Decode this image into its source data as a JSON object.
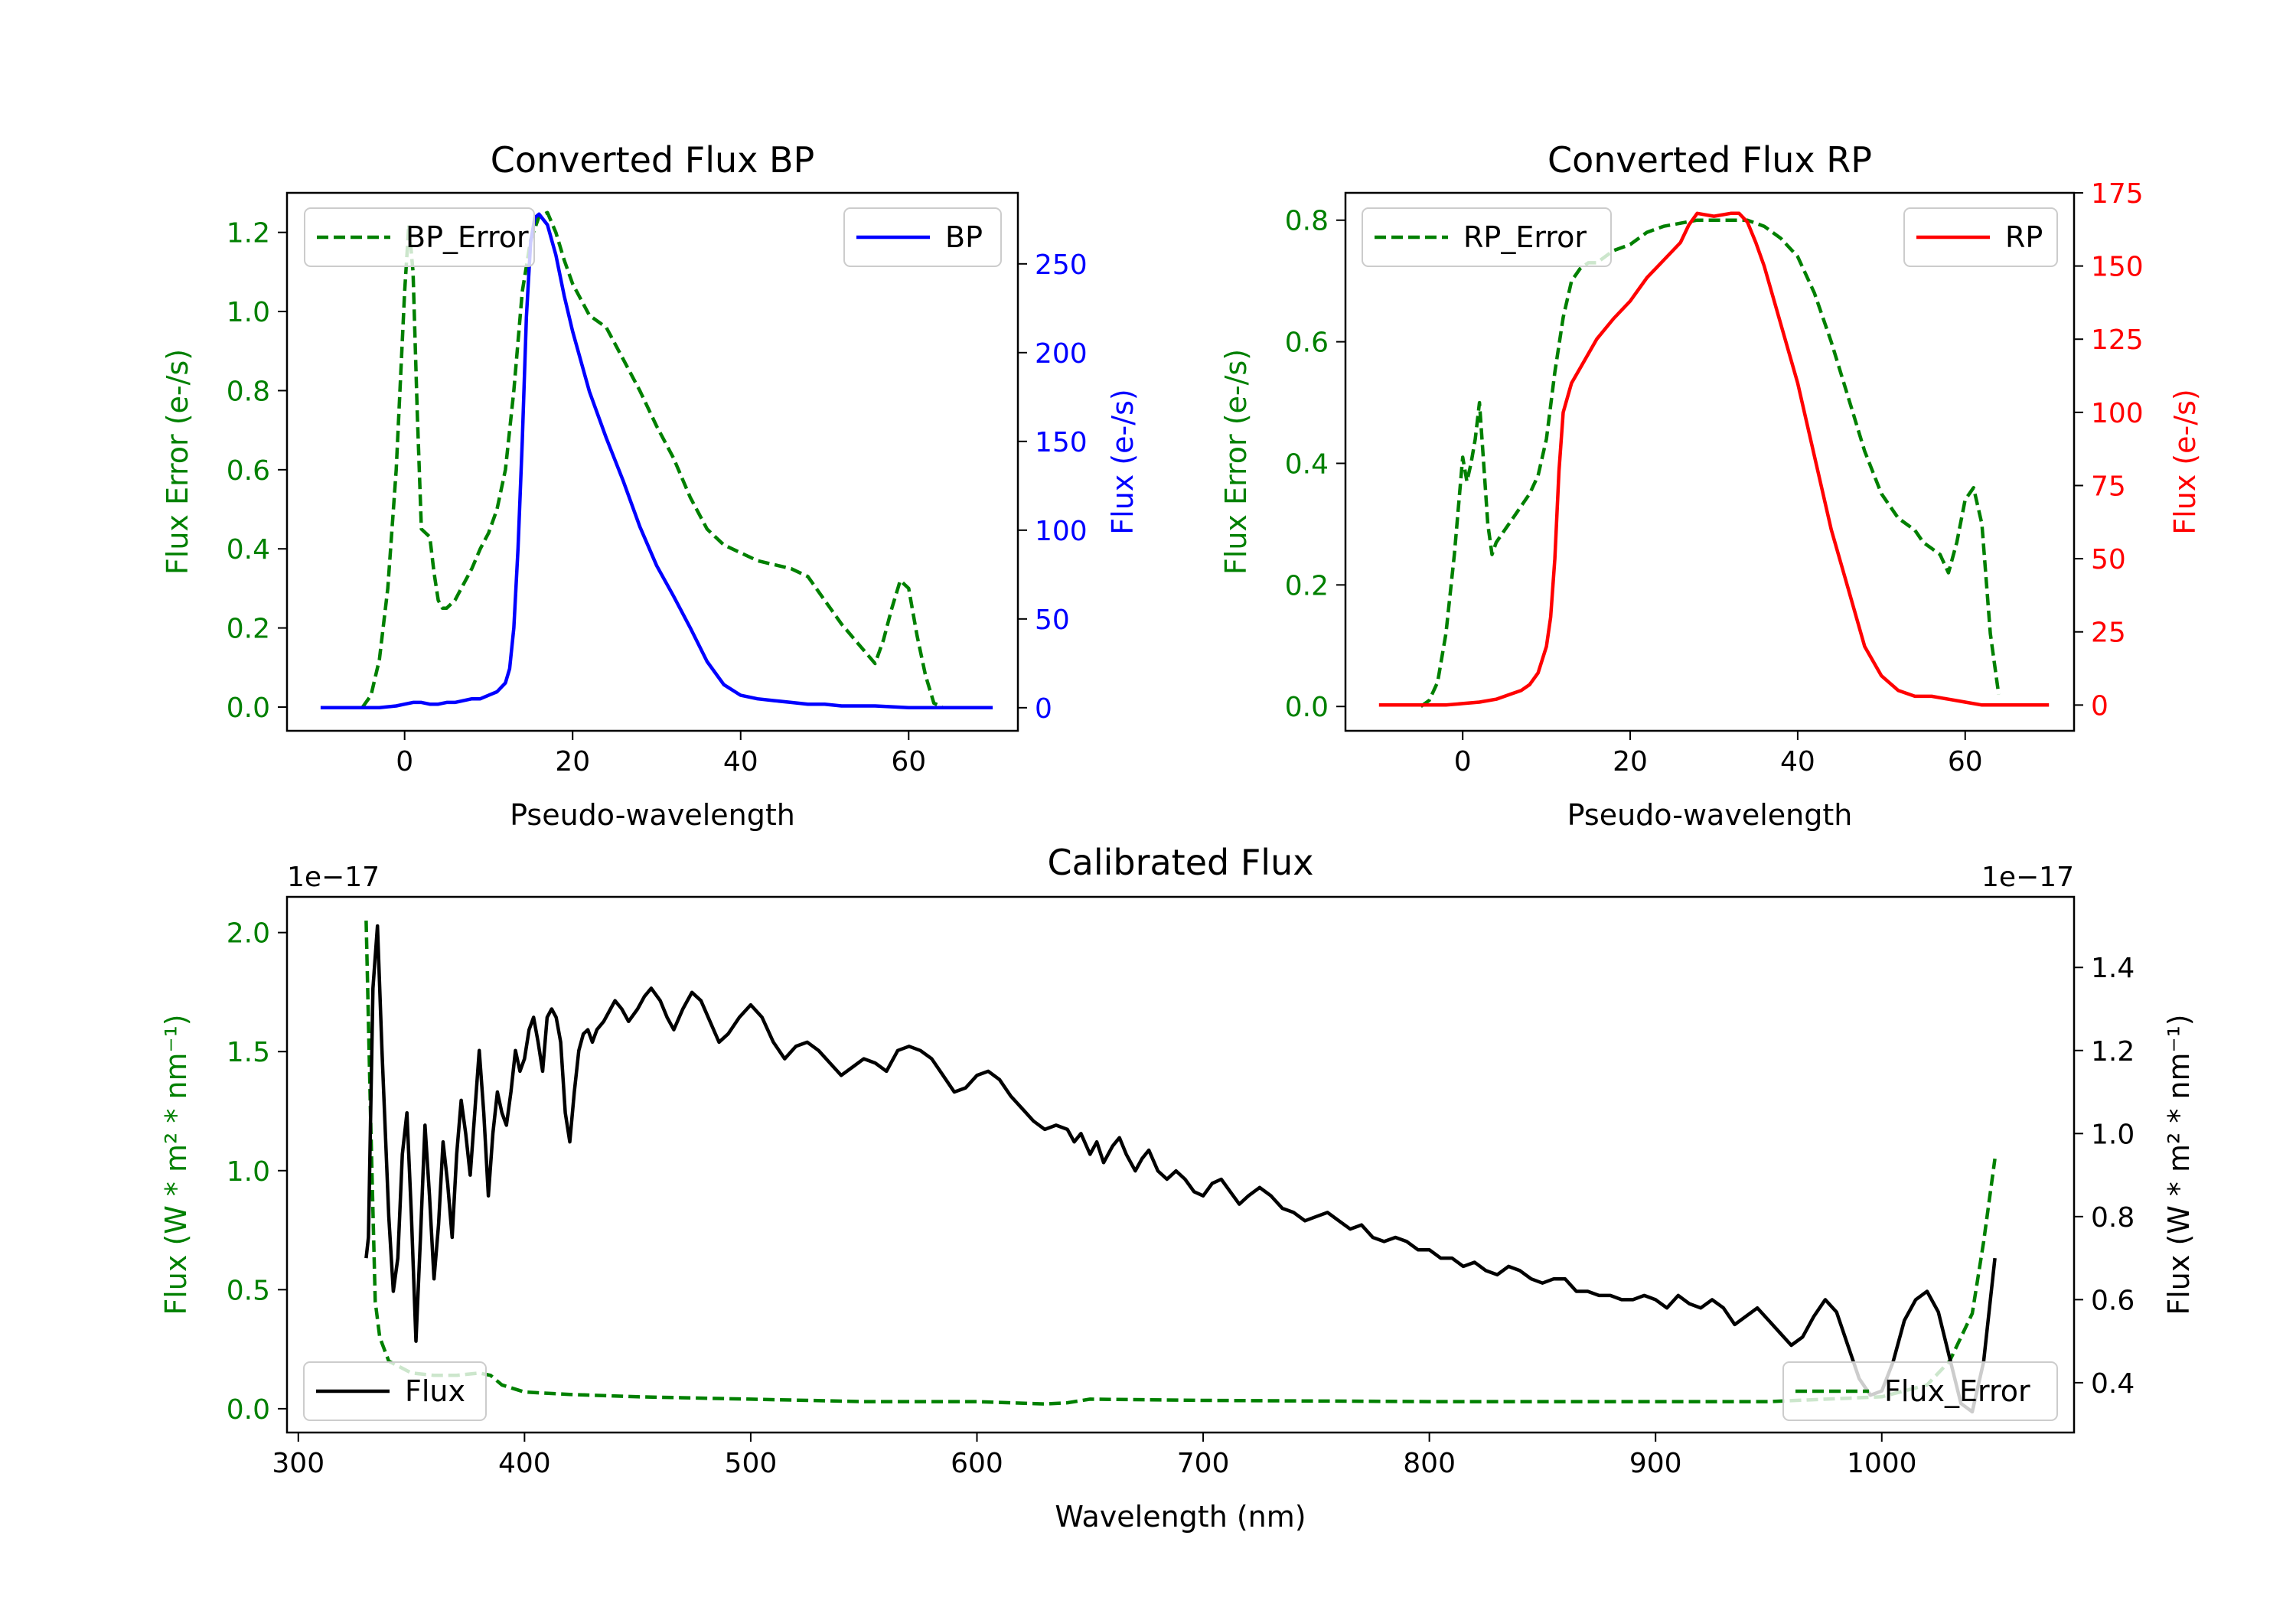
{
  "chart_data": [
    {
      "type": "line",
      "title": "Converted Flux BP",
      "xlabel": "Pseudo-wavelength",
      "xlim": [
        -14,
        73
      ],
      "xticks": [
        0,
        20,
        40,
        60
      ],
      "left_axis": {
        "label": "Flux Error (e-/s)",
        "color": "#008000",
        "ylim": [
          -0.06,
          1.3
        ],
        "ticks": [
          0.0,
          0.2,
          0.4,
          0.6,
          0.8,
          1.0,
          1.2
        ],
        "tick_labels": [
          "0.0",
          "0.2",
          "0.4",
          "0.6",
          "0.8",
          "1.0",
          "1.2"
        ]
      },
      "right_axis": {
        "label": "Flux (e-/s)",
        "color": "#0000ff",
        "ylim": [
          -13,
          290
        ],
        "ticks": [
          0,
          50,
          100,
          150,
          200,
          250
        ],
        "tick_labels": [
          "0",
          "50",
          "100",
          "150",
          "200",
          "250"
        ]
      },
      "series": [
        {
          "name": "BP_Error",
          "axis": "left",
          "color": "#008000",
          "dashed": true,
          "legend": "upper left",
          "x": [
            -10,
            -5,
            -4,
            -3,
            -2,
            -1,
            0,
            0.5,
            1,
            1.5,
            2,
            2.5,
            3,
            3.5,
            4,
            4.5,
            5,
            6,
            7,
            8,
            9,
            10,
            11,
            12,
            13,
            14,
            15,
            16,
            17,
            18,
            19,
            20,
            22,
            24,
            26,
            28,
            30,
            32,
            34,
            36,
            38,
            40,
            42,
            44,
            46,
            48,
            50,
            52,
            54,
            56,
            57,
            58,
            59,
            60,
            61,
            62,
            63,
            64,
            66,
            70
          ],
          "y": [
            null,
            0.0,
            0.03,
            0.12,
            0.3,
            0.6,
            1.05,
            1.22,
            1.1,
            0.75,
            0.45,
            0.44,
            0.43,
            0.34,
            0.27,
            0.25,
            0.25,
            0.27,
            0.31,
            0.35,
            0.4,
            0.44,
            0.5,
            0.6,
            0.8,
            1.05,
            1.18,
            1.24,
            1.25,
            1.2,
            1.13,
            1.07,
            0.99,
            0.96,
            0.88,
            0.8,
            0.71,
            0.63,
            0.53,
            0.45,
            0.41,
            0.39,
            0.37,
            0.36,
            0.35,
            0.33,
            0.27,
            0.21,
            0.16,
            0.11,
            0.17,
            0.25,
            0.32,
            0.3,
            0.18,
            0.08,
            0.01,
            0.0,
            null,
            null
          ]
        },
        {
          "name": "BP",
          "axis": "right",
          "color": "#0000ff",
          "dashed": false,
          "legend": "upper right",
          "x": [
            -10,
            -6,
            -3,
            -1,
            0,
            1,
            2,
            3,
            4,
            5,
            6,
            7,
            8,
            9,
            10,
            11,
            12,
            12.5,
            13,
            13.5,
            14,
            14.5,
            15,
            15.5,
            16,
            17,
            18,
            19,
            20,
            22,
            24,
            26,
            28,
            30,
            32,
            34,
            36,
            38,
            40,
            42,
            44,
            46,
            48,
            50,
            52,
            56,
            60,
            65,
            70
          ],
          "y": [
            0,
            0,
            0,
            1,
            2,
            3,
            3,
            2,
            2,
            3,
            3,
            4,
            5,
            5,
            7,
            9,
            14,
            22,
            45,
            90,
            150,
            220,
            262,
            276,
            278,
            272,
            255,
            232,
            212,
            178,
            152,
            128,
            102,
            80,
            63,
            45,
            26,
            13,
            7,
            5,
            4,
            3,
            2,
            2,
            1,
            1,
            0,
            0,
            0
          ]
        }
      ]
    },
    {
      "type": "line",
      "title": "Converted Flux RP",
      "xlabel": "Pseudo-wavelength",
      "xlim": [
        -14,
        73
      ],
      "xticks": [
        0,
        20,
        40,
        60
      ],
      "left_axis": {
        "label": "Flux Error (e-/s)",
        "color": "#008000",
        "ylim": [
          -0.04,
          0.845
        ],
        "ticks": [
          0.0,
          0.2,
          0.4,
          0.6,
          0.8
        ],
        "tick_labels": [
          "0.0",
          "0.2",
          "0.4",
          "0.6",
          "0.8"
        ]
      },
      "right_axis": {
        "label": "Flux (e-/s)",
        "color": "#ff0000",
        "ylim": [
          -8.8,
          175
        ],
        "ticks": [
          0,
          25,
          50,
          75,
          100,
          125,
          150,
          175
        ],
        "tick_labels": [
          "0",
          "25",
          "50",
          "75",
          "100",
          "125",
          "150",
          "175"
        ]
      },
      "series": [
        {
          "name": "RP_Error",
          "axis": "left",
          "color": "#008000",
          "dashed": true,
          "legend": "upper left",
          "x": [
            -10,
            -5,
            -4,
            -3,
            -2,
            -1,
            0,
            0.5,
            1,
            1.5,
            2,
            2.5,
            3,
            3.5,
            4,
            5,
            6,
            7,
            8,
            9,
            10,
            11,
            12,
            13,
            14,
            15,
            16,
            18,
            20,
            22,
            24,
            26,
            28,
            30,
            32,
            34,
            36,
            38,
            40,
            42,
            44,
            46,
            48,
            50,
            52,
            54,
            55,
            56,
            57,
            58,
            59,
            60,
            61,
            62,
            63,
            64,
            66,
            70
          ],
          "y": [
            null,
            0.0,
            0.01,
            0.04,
            0.12,
            0.25,
            0.41,
            0.37,
            0.4,
            0.44,
            0.5,
            0.4,
            0.3,
            0.25,
            0.27,
            0.29,
            0.31,
            0.33,
            0.35,
            0.38,
            0.44,
            0.55,
            0.64,
            0.7,
            0.72,
            0.73,
            0.73,
            0.75,
            0.76,
            0.78,
            0.79,
            0.795,
            0.8,
            0.8,
            0.8,
            0.8,
            0.79,
            0.77,
            0.74,
            0.68,
            0.6,
            0.51,
            0.42,
            0.35,
            0.31,
            0.29,
            0.27,
            0.26,
            0.25,
            0.22,
            0.27,
            0.34,
            0.36,
            0.3,
            0.12,
            0.02,
            null,
            null
          ]
        },
        {
          "name": "RP",
          "axis": "right",
          "color": "#ff0000",
          "dashed": false,
          "legend": "upper right",
          "x": [
            -10,
            -5,
            -2,
            0,
            2,
            4,
            6,
            7,
            8,
            9,
            10,
            10.5,
            11,
            11.5,
            12,
            13,
            14,
            16,
            18,
            20,
            22,
            24,
            26,
            27,
            28,
            30,
            32,
            33,
            34,
            35,
            36,
            38,
            40,
            42,
            44,
            46,
            48,
            50,
            52,
            54,
            56,
            58,
            60,
            62,
            66,
            70
          ],
          "y": [
            0,
            0,
            0,
            0.5,
            1,
            2,
            4,
            5,
            7,
            11,
            20,
            30,
            50,
            80,
            100,
            110,
            115,
            125,
            132,
            138,
            146,
            152,
            158,
            164,
            168,
            167,
            168,
            168,
            165,
            158,
            150,
            130,
            110,
            85,
            60,
            40,
            20,
            10,
            5,
            3,
            3,
            2,
            1,
            0,
            0,
            0
          ]
        }
      ]
    },
    {
      "type": "line",
      "title": "Calibrated Flux",
      "xlabel": "Wavelength (nm)",
      "xlim": [
        295,
        1085
      ],
      "xticks": [
        300,
        400,
        500,
        600,
        700,
        800,
        900,
        1000
      ],
      "left_axis": {
        "label": "Flux (W * m² * nm⁻¹)",
        "color": "#008000",
        "ylim": [
          -0.1,
          2.15
        ],
        "multiplier": "1e−17",
        "ticks": [
          0.0,
          0.5,
          1.0,
          1.5,
          2.0
        ],
        "tick_labels": [
          "0.0",
          "0.5",
          "1.0",
          "1.5",
          "2.0"
        ]
      },
      "right_axis": {
        "label": "Flux (W * m² * nm⁻¹)",
        "color": "#000000",
        "ylim": [
          0.28,
          1.57
        ],
        "multiplier": "1e−17",
        "ticks": [
          0.4,
          0.6,
          0.8,
          1.0,
          1.2,
          1.4
        ],
        "tick_labels": [
          "0.4",
          "0.6",
          "0.8",
          "1.0",
          "1.2",
          "1.4"
        ]
      },
      "series": [
        {
          "name": "Flux_Error",
          "axis": "left",
          "color": "#008000",
          "dashed": true,
          "legend": "lower right",
          "x": [
            330,
            332,
            334,
            336,
            340,
            350,
            360,
            370,
            380,
            385,
            390,
            400,
            420,
            450,
            500,
            550,
            600,
            630,
            640,
            650,
            700,
            800,
            900,
            950,
            1000,
            1020,
            1030,
            1040,
            1045,
            1050
          ],
          "y": [
            2.05,
            1.2,
            0.45,
            0.3,
            0.2,
            0.15,
            0.14,
            0.14,
            0.15,
            0.14,
            0.1,
            0.07,
            0.06,
            0.05,
            0.04,
            0.03,
            0.03,
            0.02,
            0.025,
            0.04,
            0.035,
            0.03,
            0.03,
            0.03,
            0.05,
            0.1,
            0.2,
            0.4,
            0.7,
            1.05
          ]
        },
        {
          "name": "Flux",
          "axis": "right",
          "color": "#000000",
          "dashed": false,
          "legend": "lower left",
          "x": [
            330,
            331,
            333,
            335,
            337,
            340,
            342,
            344,
            346,
            348,
            350,
            352,
            354,
            356,
            358,
            360,
            362,
            364,
            366,
            368,
            370,
            372,
            374,
            376,
            378,
            380,
            382,
            384,
            386,
            388,
            390,
            392,
            394,
            396,
            398,
            400,
            402,
            404,
            406,
            408,
            410,
            412,
            414,
            416,
            418,
            420,
            422,
            424,
            426,
            428,
            430,
            432,
            435,
            438,
            440,
            443,
            446,
            450,
            453,
            456,
            460,
            463,
            466,
            470,
            474,
            478,
            482,
            486,
            490,
            495,
            500,
            505,
            510,
            515,
            520,
            525,
            530,
            535,
            540,
            545,
            550,
            555,
            560,
            565,
            570,
            575,
            580,
            585,
            590,
            595,
            600,
            605,
            610,
            615,
            620,
            625,
            630,
            635,
            640,
            643,
            646,
            650,
            653,
            656,
            660,
            663,
            666,
            670,
            673,
            676,
            680,
            684,
            688,
            692,
            696,
            700,
            704,
            708,
            712,
            716,
            720,
            725,
            730,
            735,
            740,
            745,
            750,
            755,
            760,
            765,
            770,
            775,
            780,
            785,
            790,
            795,
            800,
            805,
            810,
            815,
            820,
            825,
            830,
            835,
            840,
            845,
            850,
            855,
            860,
            865,
            870,
            875,
            880,
            885,
            890,
            895,
            900,
            905,
            910,
            915,
            920,
            925,
            930,
            935,
            940,
            945,
            950,
            955,
            960,
            965,
            970,
            975,
            980,
            985,
            990,
            995,
            1000,
            1005,
            1010,
            1015,
            1020,
            1025,
            1030,
            1035,
            1040,
            1045,
            1050
          ],
          "y": [
            0.7,
            0.75,
            1.35,
            1.5,
            1.2,
            0.8,
            0.62,
            0.7,
            0.95,
            1.05,
            0.8,
            0.5,
            0.75,
            1.02,
            0.85,
            0.65,
            0.78,
            0.98,
            0.88,
            0.75,
            0.95,
            1.08,
            1.0,
            0.9,
            1.05,
            1.2,
            1.05,
            0.85,
            1.0,
            1.1,
            1.05,
            1.02,
            1.1,
            1.2,
            1.15,
            1.18,
            1.25,
            1.28,
            1.22,
            1.15,
            1.28,
            1.3,
            1.28,
            1.22,
            1.05,
            0.98,
            1.1,
            1.2,
            1.24,
            1.25,
            1.22,
            1.25,
            1.27,
            1.3,
            1.32,
            1.3,
            1.27,
            1.3,
            1.33,
            1.35,
            1.32,
            1.28,
            1.25,
            1.3,
            1.34,
            1.32,
            1.27,
            1.22,
            1.24,
            1.28,
            1.31,
            1.28,
            1.22,
            1.18,
            1.21,
            1.22,
            1.2,
            1.17,
            1.14,
            1.16,
            1.18,
            1.17,
            1.15,
            1.2,
            1.21,
            1.2,
            1.18,
            1.14,
            1.1,
            1.11,
            1.14,
            1.15,
            1.13,
            1.09,
            1.06,
            1.03,
            1.01,
            1.02,
            1.01,
            0.98,
            1.0,
            0.95,
            0.98,
            0.93,
            0.97,
            0.99,
            0.95,
            0.91,
            0.94,
            0.96,
            0.91,
            0.89,
            0.91,
            0.89,
            0.86,
            0.85,
            0.88,
            0.89,
            0.86,
            0.83,
            0.85,
            0.87,
            0.85,
            0.82,
            0.81,
            0.79,
            0.8,
            0.81,
            0.79,
            0.77,
            0.78,
            0.75,
            0.74,
            0.75,
            0.74,
            0.72,
            0.72,
            0.7,
            0.7,
            0.68,
            0.69,
            0.67,
            0.66,
            0.68,
            0.67,
            0.65,
            0.64,
            0.65,
            0.65,
            0.62,
            0.62,
            0.61,
            0.61,
            0.6,
            0.6,
            0.61,
            0.6,
            0.58,
            0.61,
            0.59,
            0.58,
            0.6,
            0.58,
            0.54,
            0.56,
            0.58,
            0.55,
            0.52,
            0.49,
            0.51,
            0.56,
            0.6,
            0.57,
            0.49,
            0.41,
            0.37,
            0.38,
            0.45,
            0.55,
            0.6,
            0.62,
            0.57,
            0.46,
            0.35,
            0.33,
            0.45,
            0.7
          ]
        }
      ]
    }
  ]
}
